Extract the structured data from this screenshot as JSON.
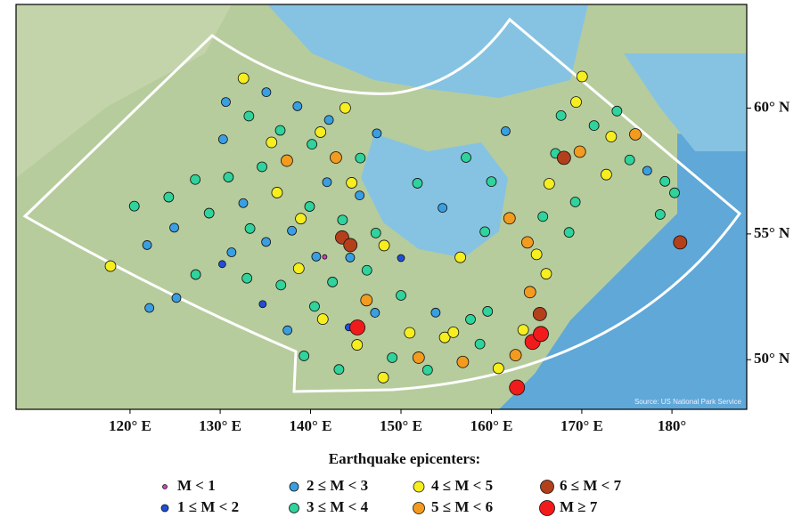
{
  "map": {
    "source": "Source: US National Park Service",
    "lon_ticks": [
      {
        "value": 120,
        "label": "120° E"
      },
      {
        "value": 130,
        "label": "130° E"
      },
      {
        "value": 140,
        "label": "140° E"
      },
      {
        "value": 150,
        "label": "150° E"
      },
      {
        "value": 160,
        "label": "160° E"
      },
      {
        "value": 170,
        "label": "170° E"
      },
      {
        "value": 180,
        "label": "180°"
      }
    ],
    "lat_ticks": [
      {
        "value": 60,
        "label": "60° N"
      },
      {
        "value": 55,
        "label": "55° N"
      },
      {
        "value": 50,
        "label": "50° N"
      }
    ]
  },
  "legend": {
    "title": "Earthquake epicenters:",
    "classes": [
      {
        "label": "M < 1",
        "color": "#d43cc4"
      },
      {
        "label": "1 ≤ M < 2",
        "color": "#1f4fd8"
      },
      {
        "label": "2 ≤ M < 3",
        "color": "#3a9fe2"
      },
      {
        "label": "3 ≤ M < 4",
        "color": "#2fd39b"
      },
      {
        "label": "4 ≤ M < 5",
        "color": "#f6ee1e"
      },
      {
        "label": "5 ≤ M < 6",
        "color": "#f39b1f"
      },
      {
        "label": "6 ≤ M < 7",
        "color": "#b3401b"
      },
      {
        "label": "M ≥ 7",
        "color": "#f21b1b"
      }
    ]
  },
  "epicenters": [
    [
      128,
      61,
      2
    ],
    [
      130,
      62,
      4
    ],
    [
      131,
      60.5,
      3
    ],
    [
      133,
      61.5,
      2
    ],
    [
      135,
      60,
      3
    ],
    [
      137,
      61,
      2
    ],
    [
      139,
      59.5,
      3
    ],
    [
      141,
      60.5,
      2
    ],
    [
      143,
      61,
      4
    ],
    [
      145,
      59,
      3
    ],
    [
      147,
      60,
      2
    ],
    [
      129,
      58,
      3
    ],
    [
      131,
      57,
      2
    ],
    [
      133,
      58.5,
      3
    ],
    [
      135,
      57.5,
      4
    ],
    [
      137,
      56,
      2
    ],
    [
      139,
      57,
      3
    ],
    [
      141,
      58,
      2
    ],
    [
      143,
      56.5,
      3
    ],
    [
      145,
      57.5,
      2
    ],
    [
      147,
      56,
      3
    ],
    [
      130,
      55,
      2
    ],
    [
      132,
      54,
      3
    ],
    [
      134,
      55.5,
      2
    ],
    [
      136,
      53.8,
      3
    ],
    [
      138,
      54.5,
      4
    ],
    [
      140,
      55,
      2
    ],
    [
      142,
      54,
      3
    ],
    [
      144,
      55,
      2
    ],
    [
      146,
      54.5,
      3
    ],
    [
      148,
      55.5,
      4
    ],
    [
      134,
      59.5,
      4
    ],
    [
      136,
      58.8,
      5
    ],
    [
      140,
      60,
      4
    ],
    [
      142,
      59,
      5
    ],
    [
      144,
      58,
      4
    ],
    [
      138,
      56.5,
      4
    ],
    [
      132,
      56,
      3
    ],
    [
      128,
      59.5,
      2
    ],
    [
      127,
      56.5,
      3
    ],
    [
      116,
      54,
      4
    ],
    [
      118,
      56.5,
      3
    ],
    [
      120,
      55,
      2
    ],
    [
      122,
      57,
      3
    ],
    [
      124,
      53,
      2
    ],
    [
      126,
      54,
      3
    ],
    [
      121,
      52.5,
      2
    ],
    [
      125,
      57.8,
      3
    ],
    [
      123,
      55.8,
      2
    ],
    [
      137,
      52,
      2
    ],
    [
      139,
      51,
      3
    ],
    [
      141,
      52.5,
      4
    ],
    [
      143,
      50.5,
      3
    ],
    [
      145,
      51.5,
      4
    ],
    [
      147,
      52.8,
      2
    ],
    [
      149,
      51,
      3
    ],
    [
      151,
      52,
      4
    ],
    [
      153,
      50.5,
      3
    ],
    [
      155,
      51.8,
      4
    ],
    [
      157,
      50.8,
      5
    ],
    [
      159,
      51.5,
      3
    ],
    [
      161,
      50.5,
      4
    ],
    [
      163,
      51,
      5
    ],
    [
      140,
      53,
      3
    ],
    [
      146,
      53.3,
      5
    ],
    [
      150,
      53.5,
      3
    ],
    [
      154,
      52.8,
      2
    ],
    [
      158,
      52.5,
      3
    ],
    [
      152,
      51,
      5
    ],
    [
      156,
      52,
      4
    ],
    [
      144,
      52.2,
      1
    ],
    [
      148,
      50.2,
      4
    ],
    [
      160,
      52.8,
      3
    ],
    [
      164,
      52,
      4
    ],
    [
      165,
      53.5,
      5
    ],
    [
      166,
      55,
      4
    ],
    [
      167,
      56.5,
      3
    ],
    [
      168,
      57.8,
      4
    ],
    [
      169,
      59,
      3
    ],
    [
      170,
      55.8,
      3
    ],
    [
      166,
      52.6,
      6
    ],
    [
      167,
      54.2,
      4
    ],
    [
      171,
      57,
      3
    ],
    [
      165,
      55.5,
      5
    ],
    [
      152,
      58,
      3
    ],
    [
      155,
      57,
      2
    ],
    [
      158,
      59,
      3
    ],
    [
      161,
      58,
      3
    ],
    [
      163,
      60,
      2
    ],
    [
      160,
      56,
      3
    ],
    [
      157,
      55,
      4
    ],
    [
      163,
      56.5,
      5
    ],
    [
      170,
      60.5,
      3
    ],
    [
      172,
      61,
      4
    ],
    [
      174,
      60,
      3
    ],
    [
      176,
      59.5,
      4
    ],
    [
      178,
      58.5,
      3
    ],
    [
      180,
      58,
      2
    ],
    [
      182,
      57.5,
      3
    ],
    [
      172,
      59,
      5
    ],
    [
      175,
      58,
      4
    ],
    [
      177,
      60.5,
      3
    ],
    [
      173,
      62,
      4
    ],
    [
      170,
      58.8,
      6
    ],
    [
      179,
      59.5,
      5
    ],
    [
      183,
      57,
      3
    ],
    [
      181,
      56.2,
      3
    ],
    [
      183,
      55,
      6
    ],
    [
      143,
      55.8,
      6
    ],
    [
      144,
      55.5,
      6
    ],
    [
      165,
      51.5,
      7
    ],
    [
      166,
      51.8,
      7
    ],
    [
      145,
      52.2,
      7
    ],
    [
      163,
      49.7,
      7
    ],
    [
      141,
      55,
      0
    ],
    [
      134,
      53,
      1
    ],
    [
      129,
      54.5,
      1
    ],
    [
      150,
      55,
      1
    ]
  ]
}
